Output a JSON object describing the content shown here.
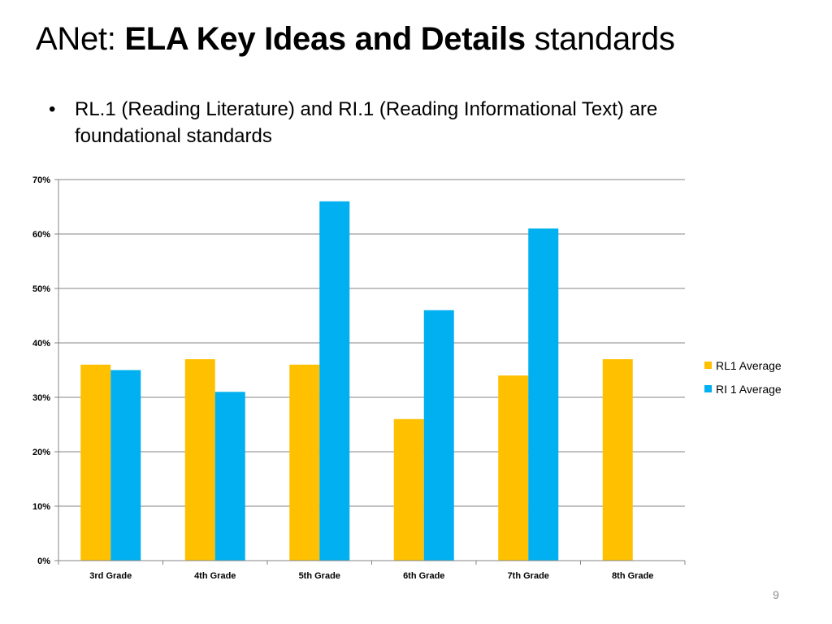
{
  "slide": {
    "title_prefix": "ANet: ",
    "title_bold": "ELA Key Ideas and Details",
    "title_suffix": " standards",
    "bullet_marker": "•",
    "bullet_text": "RL.1 (Reading Literature) and RI.1 (Reading Informational Text) are foundational standards",
    "page_number": "9"
  },
  "chart_data": {
    "type": "bar",
    "title": "",
    "xlabel": "",
    "ylabel": "",
    "categories": [
      "3rd Grade",
      "4th Grade",
      "5th Grade",
      "6th Grade",
      "7th Grade",
      "8th Grade"
    ],
    "series": [
      {
        "name": "RL1 Average",
        "color": "#FFC000",
        "values": [
          0.36,
          0.37,
          0.36,
          0.26,
          0.34,
          0.37
        ]
      },
      {
        "name": "RI 1 Average",
        "color": "#00B0F0",
        "values": [
          0.35,
          0.31,
          0.66,
          0.46,
          0.61,
          null
        ]
      }
    ],
    "ylim": [
      0,
      0.7
    ],
    "yticks": [
      0,
      0.1,
      0.2,
      0.3,
      0.4,
      0.5,
      0.6,
      0.7
    ],
    "ytick_labels": [
      "0%",
      "10%",
      "20%",
      "30%",
      "40%",
      "50%",
      "60%",
      "70%"
    ],
    "grid": true,
    "gridline_color": "#868686",
    "legend_position": "right"
  }
}
